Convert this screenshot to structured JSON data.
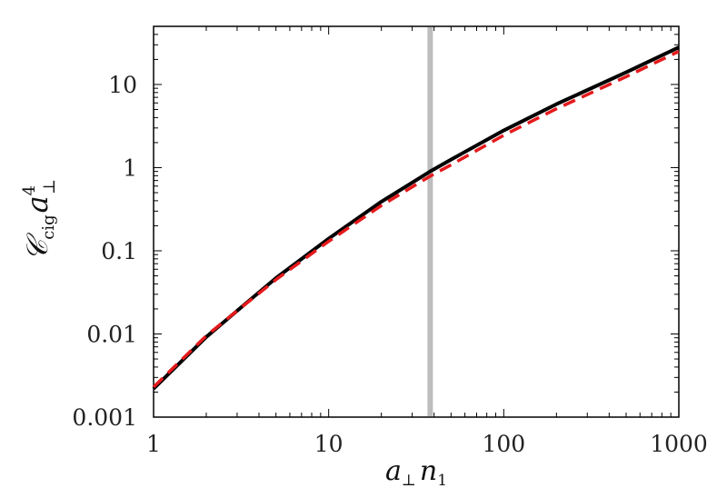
{
  "chart_data": {
    "type": "line",
    "xscale": "log",
    "yscale": "log",
    "xlim": [
      1,
      1000
    ],
    "ylim": [
      0.001,
      50
    ],
    "grid": false,
    "xlabel": "a⊥n1",
    "ylabel": "Ccig a⊥^4",
    "xtick_labels": [
      "1",
      "10",
      "100",
      "1000"
    ],
    "ytick_labels": [
      "0.001",
      "0.01",
      "0.1",
      "1",
      "10"
    ],
    "xticks": [
      1,
      10,
      100,
      1000
    ],
    "yticks": [
      0.001,
      0.01,
      0.1,
      1,
      10
    ],
    "vline": {
      "x": 38,
      "color": "#bdbdbd"
    },
    "series": [
      {
        "style": "solid",
        "color": "#000000",
        "x": [
          1,
          2,
          3,
          5,
          10,
          20,
          38,
          50,
          100,
          200,
          500,
          1000
        ],
        "y": [
          0.0022,
          0.0092,
          0.019,
          0.047,
          0.14,
          0.39,
          0.9,
          1.25,
          2.8,
          5.8,
          14,
          28
        ]
      },
      {
        "style": "dashed",
        "color": "#e41a1c",
        "x": [
          1,
          2,
          3,
          5,
          10,
          20,
          38,
          50,
          100,
          200,
          500,
          1000
        ],
        "y": [
          0.0023,
          0.0095,
          0.019,
          0.045,
          0.13,
          0.35,
          0.79,
          1.08,
          2.45,
          5.1,
          12.4,
          25
        ]
      }
    ]
  }
}
